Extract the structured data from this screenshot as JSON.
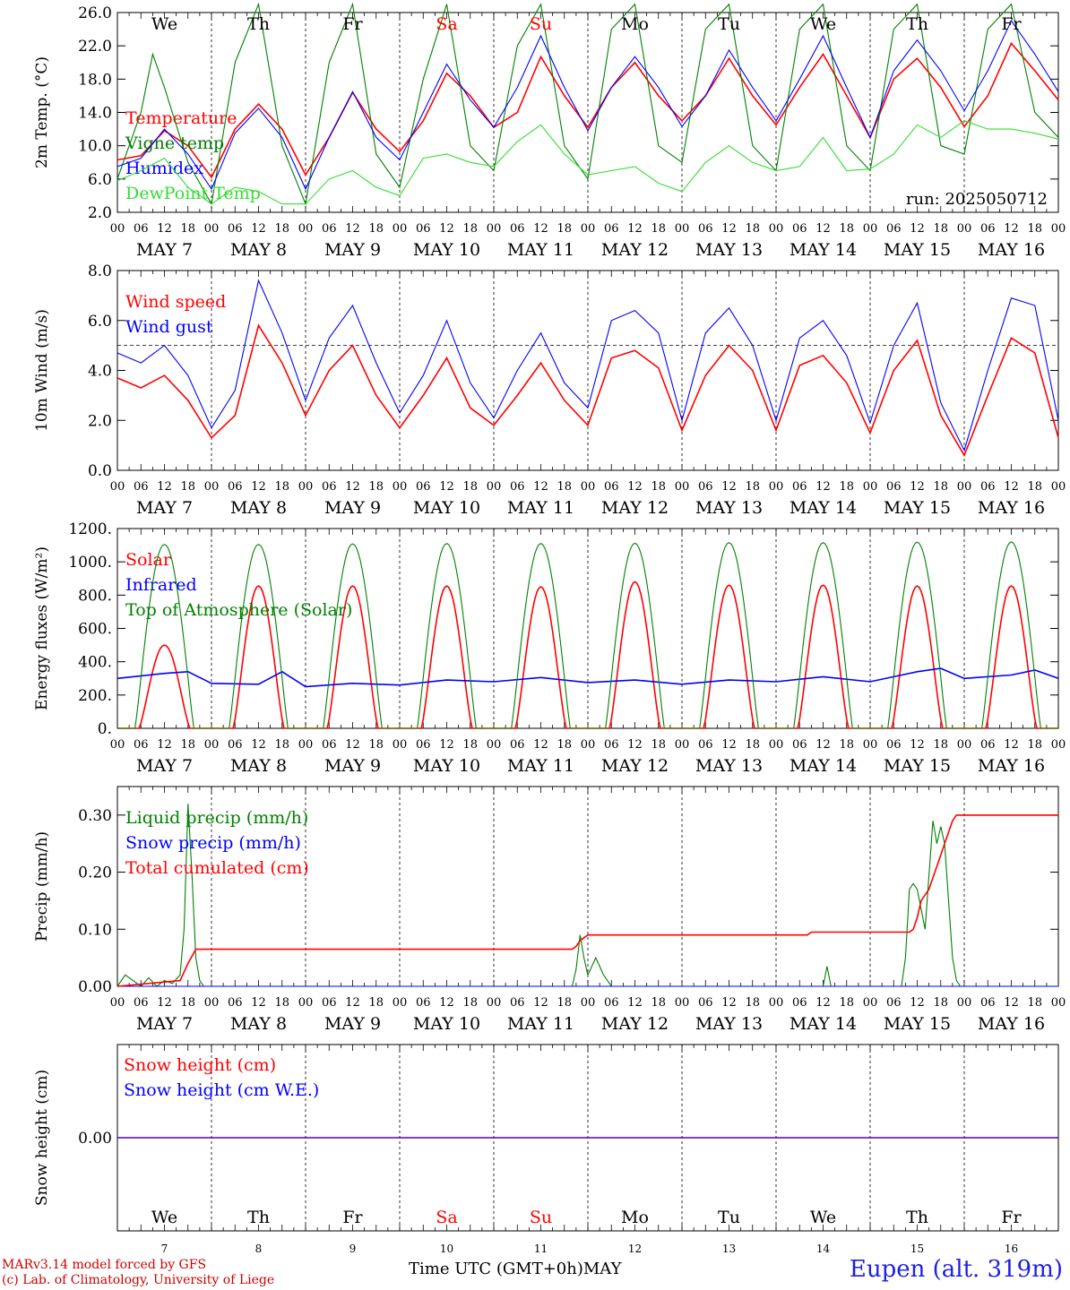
{
  "footer": {
    "credit_line1": "MARv3.14 model forced by GFS",
    "credit_line2": "(c) Lab. of Climatology, University of Liege",
    "station": "Eupen (alt. 319m)",
    "x_title": "Time UTC (GMT+0h)MAY"
  },
  "axis": {
    "hour_ticks": [
      "00",
      "06",
      "12",
      "18"
    ],
    "end_tick": "00",
    "date_labels": [
      "MAY  7",
      "MAY  8",
      "MAY  9",
      "MAY 10",
      "MAY 11",
      "MAY 12",
      "MAY 13",
      "MAY 14",
      "MAY 15",
      "MAY 16"
    ],
    "weekdays": [
      "We",
      "Th",
      "Fr",
      "Sa",
      "Su",
      "Mo",
      "Tu",
      "We",
      "Th",
      "Fr"
    ],
    "weekend_flags": [
      false,
      false,
      false,
      true,
      true,
      false,
      false,
      false,
      false,
      false
    ],
    "day_numbers": [
      "7",
      "8",
      "9",
      "10",
      "11",
      "12",
      "13",
      "14",
      "15",
      "16"
    ]
  },
  "colors": {
    "red": "#ff0000",
    "blue": "#0000ff",
    "green": "#008000",
    "lightgreen": "#33dd33",
    "weekend": "#ff0000"
  },
  "chart_data": [
    {
      "id": "temp",
      "type": "line",
      "ylabel": "2m Temp. (°C)",
      "ylim": [
        2,
        26
      ],
      "yticks": [
        "2.0",
        "6.0",
        "10.0",
        "14.0",
        "18.0",
        "22.0",
        "26.0"
      ],
      "annotation": "run: 2025050712",
      "x_unit": "hours since May 7 00 UTC",
      "series": [
        {
          "name": "Temperature",
          "color": "red",
          "x": [
            0,
            6,
            12,
            18,
            24,
            30,
            36,
            42,
            48,
            54,
            60,
            66,
            72,
            78,
            84,
            90,
            96,
            102,
            108,
            114,
            120,
            126,
            132,
            138,
            144,
            150,
            156,
            162,
            168,
            174,
            180,
            186,
            192,
            198,
            204,
            210,
            216,
            222,
            228,
            234,
            240
          ],
          "y": [
            8.3,
            8.8,
            11.8,
            10,
            6.2,
            12,
            15,
            12,
            6.5,
            11,
            16.4,
            12,
            9.3,
            13,
            18.7,
            16,
            12.2,
            14,
            20.7,
            16,
            12.2,
            17,
            20,
            16,
            13,
            16,
            20.5,
            16,
            12.5,
            17,
            21,
            16,
            11,
            18,
            20.5,
            17,
            12.3,
            16,
            22.3,
            19,
            15.5
          ]
        },
        {
          "name": "Vigne temp",
          "color": "green",
          "x": [
            0,
            6,
            9,
            12,
            18,
            24,
            30,
            36,
            42,
            48,
            54,
            60,
            66,
            72,
            78,
            84,
            90,
            96,
            102,
            108,
            114,
            120,
            126,
            132,
            138,
            144,
            150,
            156,
            162,
            168,
            174,
            180,
            186,
            192,
            198,
            204,
            210,
            216,
            222,
            228,
            234,
            240
          ],
          "y": [
            6,
            14,
            21,
            17,
            8,
            3,
            20,
            27,
            10,
            3,
            20,
            27,
            9,
            5,
            18,
            27,
            10,
            7,
            22,
            27,
            10,
            6,
            24,
            27,
            10,
            8,
            24,
            27,
            10,
            7,
            24,
            27,
            10,
            7,
            24,
            27,
            10,
            9,
            24,
            27,
            14,
            11
          ]
        },
        {
          "name": "Humidex",
          "color": "blue",
          "x": [
            0,
            6,
            12,
            18,
            24,
            30,
            36,
            42,
            48,
            54,
            60,
            66,
            72,
            78,
            84,
            90,
            96,
            102,
            108,
            114,
            120,
            126,
            132,
            138,
            144,
            150,
            156,
            162,
            168,
            174,
            180,
            186,
            192,
            198,
            204,
            210,
            216,
            222,
            228,
            234,
            240
          ],
          "y": [
            7.5,
            8.5,
            12,
            9,
            4.8,
            11.5,
            14.5,
            11,
            4.8,
            11,
            16.5,
            11,
            8.3,
            14,
            19.8,
            15.5,
            12.2,
            17,
            23.2,
            17,
            11.8,
            17,
            20.7,
            17,
            12.3,
            16,
            21.5,
            17,
            13,
            18,
            23.2,
            17,
            11,
            19,
            22.7,
            19,
            14.2,
            19,
            25,
            21,
            16.5
          ]
        },
        {
          "name": "DewPoint Temp",
          "color": "lightgreen",
          "x": [
            0,
            6,
            12,
            18,
            24,
            30,
            36,
            42,
            48,
            54,
            60,
            66,
            72,
            78,
            84,
            90,
            96,
            102,
            108,
            114,
            120,
            126,
            132,
            138,
            144,
            150,
            156,
            162,
            168,
            174,
            180,
            186,
            192,
            198,
            204,
            210,
            216,
            222,
            228,
            234,
            240
          ],
          "y": [
            5.8,
            7,
            8.5,
            5,
            3,
            5,
            4.5,
            3,
            3,
            6,
            7,
            5,
            4,
            8.5,
            9,
            8,
            7.5,
            10.5,
            12.5,
            9,
            6.5,
            7,
            7.5,
            5.5,
            4.5,
            8,
            10,
            8,
            7,
            7.5,
            11,
            7,
            7.2,
            9,
            12.5,
            11,
            13,
            12,
            12,
            11.5,
            10.8
          ]
        }
      ]
    },
    {
      "id": "wind",
      "type": "line",
      "ylabel": "10m Wind (m/s)",
      "ylim": [
        0,
        8
      ],
      "yticks": [
        "0.0",
        "2.0",
        "4.0",
        "6.0",
        "8.0"
      ],
      "reference_line": 5,
      "series": [
        {
          "name": "Wind speed",
          "color": "red",
          "x": [
            0,
            6,
            12,
            18,
            24,
            30,
            36,
            42,
            48,
            54,
            60,
            66,
            72,
            78,
            84,
            90,
            96,
            102,
            108,
            114,
            120,
            126,
            132,
            138,
            144,
            150,
            156,
            162,
            168,
            174,
            180,
            186,
            192,
            198,
            204,
            210,
            216,
            222,
            228,
            234,
            240
          ],
          "y": [
            3.7,
            3.3,
            3.8,
            2.8,
            1.3,
            2.2,
            5.8,
            4.3,
            2.2,
            4,
            5,
            3,
            1.7,
            3,
            4.5,
            2.5,
            1.8,
            3,
            4.3,
            2.8,
            1.8,
            4.5,
            4.8,
            4.1,
            1.6,
            3.8,
            5,
            4,
            1.6,
            4.2,
            4.6,
            3.5,
            1.5,
            4,
            5.2,
            2.2,
            0.6,
            3,
            5.3,
            4.7,
            1.3
          ]
        },
        {
          "name": "Wind gust",
          "color": "blue",
          "x": [
            0,
            6,
            12,
            18,
            24,
            30,
            36,
            42,
            48,
            54,
            60,
            66,
            72,
            78,
            84,
            90,
            96,
            102,
            108,
            114,
            120,
            126,
            132,
            138,
            144,
            150,
            156,
            162,
            168,
            174,
            180,
            186,
            192,
            198,
            204,
            210,
            216,
            222,
            228,
            234,
            240
          ],
          "y": [
            4.7,
            4.3,
            5,
            3.8,
            1.7,
            3.2,
            7.6,
            5.5,
            2.8,
            5.3,
            6.6,
            4.3,
            2.3,
            3.8,
            6,
            3.5,
            2.1,
            4,
            5.5,
            3.5,
            2.5,
            6,
            6.4,
            5.5,
            2,
            5.5,
            6.5,
            5,
            2,
            5.3,
            6,
            4.6,
            1.9,
            5,
            6.7,
            2.7,
            0.8,
            4,
            6.9,
            6.6,
            2
          ]
        }
      ]
    },
    {
      "id": "energy",
      "type": "line",
      "ylabel": "Energy fluxes (W/m²)",
      "ylim": [
        0,
        1200
      ],
      "yticks": [
        "0.",
        "200.",
        "400.",
        "600.",
        "800.",
        "1000.",
        "1200."
      ],
      "series": [
        {
          "name": "Solar",
          "color": "red",
          "peak": [
            500,
            855,
            855,
            855,
            850,
            880,
            860,
            860,
            855,
            855
          ]
        },
        {
          "name": "Infrared",
          "color": "blue",
          "x": [
            0,
            12,
            18,
            24,
            36,
            42,
            48,
            60,
            72,
            84,
            96,
            108,
            120,
            132,
            144,
            156,
            168,
            180,
            192,
            204,
            210,
            216,
            228,
            234,
            240
          ],
          "y": [
            300,
            330,
            340,
            270,
            265,
            340,
            250,
            270,
            260,
            290,
            280,
            305,
            275,
            290,
            265,
            290,
            280,
            310,
            280,
            340,
            360,
            300,
            320,
            350,
            300
          ]
        },
        {
          "name": "Top of Atmosphere (Solar)",
          "color": "green",
          "peak": [
            1105,
            1105,
            1108,
            1110,
            1110,
            1112,
            1115,
            1115,
            1118,
            1120
          ]
        }
      ]
    },
    {
      "id": "precip",
      "type": "line",
      "ylabel": "Precip (mm/h)",
      "ylim": [
        0,
        0.35
      ],
      "yticks": [
        "0.00",
        "0.10",
        "0.20",
        "0.30"
      ],
      "series": [
        {
          "name": "Liquid precip (mm/h)",
          "color": "green",
          "x": [
            0,
            2,
            4,
            6,
            8,
            10,
            12,
            14,
            16,
            17,
            18,
            19,
            20,
            21,
            22,
            116,
            117,
            118,
            119,
            120,
            122,
            124,
            126,
            127,
            128,
            180,
            181,
            182,
            200,
            201,
            202,
            203,
            204,
            206,
            208,
            209,
            210,
            211,
            212,
            213,
            214,
            215,
            216,
            240
          ],
          "y": [
            0,
            0.02,
            0.01,
            0,
            0.015,
            0,
            0.01,
            0.005,
            0.02,
            0.1,
            0.32,
            0.2,
            0.05,
            0.01,
            0,
            0,
            0.03,
            0.09,
            0.05,
            0.02,
            0.05,
            0.02,
            0,
            0,
            0,
            0,
            0.035,
            0,
            0,
            0.05,
            0.17,
            0.18,
            0.17,
            0.1,
            0.29,
            0.25,
            0.28,
            0.25,
            0.15,
            0.05,
            0.01,
            0,
            0,
            0
          ]
        },
        {
          "name": "Snow precip (mm/h)",
          "color": "blue",
          "x": [
            0,
            240
          ],
          "y": [
            0,
            0
          ]
        },
        {
          "name": "Total cumulated (cm)",
          "color": "red",
          "x": [
            0,
            16,
            18,
            20,
            116,
            117,
            118,
            119,
            120,
            121,
            176,
            177,
            178,
            202,
            203,
            204,
            205,
            206,
            207,
            208,
            209,
            210,
            211,
            212,
            213,
            214,
            215,
            216,
            240
          ],
          "y": [
            0,
            0.01,
            0.04,
            0.065,
            0.065,
            0.07,
            0.08,
            0.085,
            0.09,
            0.09,
            0.09,
            0.095,
            0.095,
            0.095,
            0.1,
            0.12,
            0.15,
            0.16,
            0.17,
            0.19,
            0.21,
            0.23,
            0.25,
            0.27,
            0.29,
            0.3,
            0.3,
            0.3,
            0.3
          ]
        }
      ]
    },
    {
      "id": "snow",
      "type": "line",
      "ylabel": "Snow height (cm)",
      "ylim": [
        -1,
        1
      ],
      "yticks": [
        "0.00"
      ],
      "series": [
        {
          "name": "Snow height (cm)",
          "color": "red",
          "x": [
            0,
            240
          ],
          "y": [
            0,
            0
          ]
        },
        {
          "name": "Snow height (cm W.E.)",
          "color": "blue",
          "x": [
            0,
            240
          ],
          "y": [
            0,
            0
          ]
        }
      ]
    }
  ]
}
